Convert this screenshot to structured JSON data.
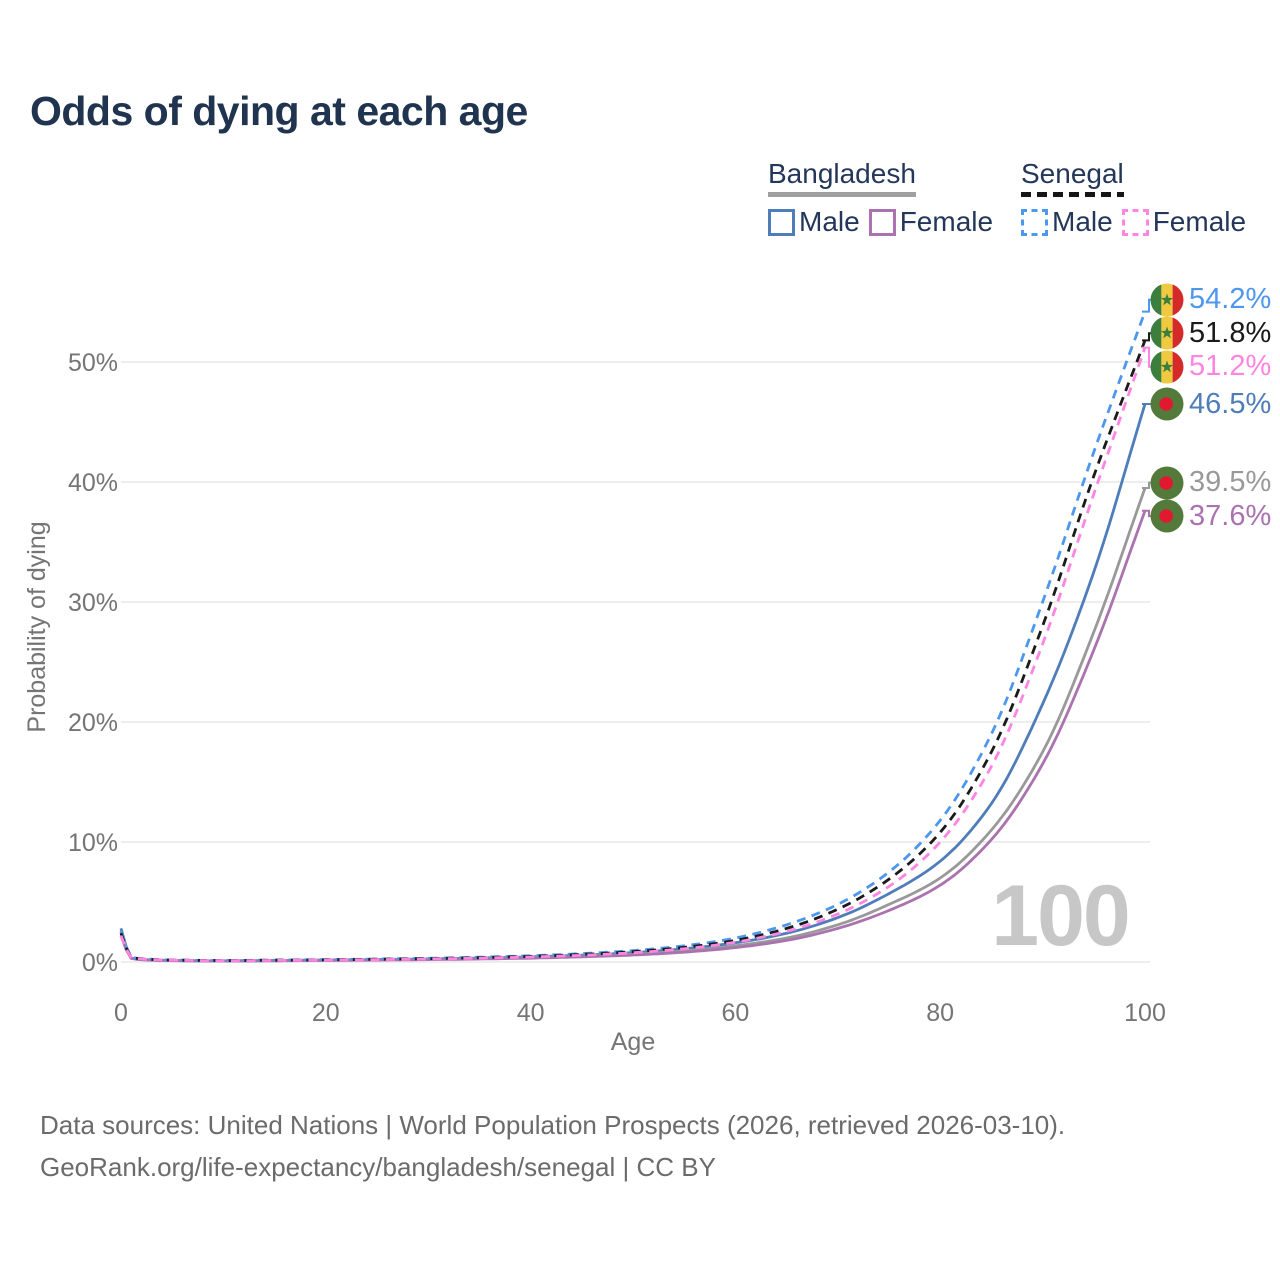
{
  "page": {
    "title": "Odds of dying at each age",
    "watermark": "100",
    "footer_line1": "Data sources: United Nations | World Population Prospects (2026, retrieved 2026-03-10).",
    "footer_line2": "GeoRank.org/life-expectancy/bangladesh/senegal | CC BY"
  },
  "legend": {
    "groups": [
      {
        "name": "Bangladesh",
        "line_style": "solid",
        "underline_color": "#a0a0a0",
        "items": [
          {
            "label": "Male",
            "series": "bangladesh-male"
          },
          {
            "label": "Female",
            "series": "bangladesh-female"
          }
        ]
      },
      {
        "name": "Senegal",
        "line_style": "dashed",
        "underline_color": "#161616",
        "items": [
          {
            "label": "Male",
            "series": "senegal-male"
          },
          {
            "label": "Female",
            "series": "senegal-female"
          }
        ]
      }
    ]
  },
  "flags": {
    "senegal": {
      "green": "#3c7e3e",
      "yellow": "#efc93f",
      "red": "#d42a2a",
      "star": "#3c7e3e"
    },
    "bangladesh": {
      "green": "#537a3a",
      "red": "#e01931"
    }
  },
  "chart_data": {
    "type": "line",
    "title": "Odds of dying at each age",
    "xlabel": "Age",
    "ylabel": "Probability of dying",
    "xlim": [
      0,
      100
    ],
    "ylim_pct": [
      0,
      56
    ],
    "xticks": [
      0,
      20,
      40,
      60,
      80,
      100
    ],
    "yticks": [
      "0%",
      "10%",
      "20%",
      "30%",
      "40%",
      "50%"
    ],
    "ytick_values": [
      0,
      10,
      20,
      30,
      40,
      50
    ],
    "grid": true,
    "legend_position": "top-right",
    "ages": [
      0,
      1,
      2,
      5,
      10,
      15,
      20,
      25,
      30,
      35,
      40,
      45,
      50,
      55,
      60,
      65,
      70,
      75,
      80,
      85,
      90,
      95,
      100
    ],
    "series": [
      {
        "id": "bangladesh-male",
        "name": "Bangladesh Male",
        "country": "Bangladesh",
        "sex": "male",
        "color": "#4e7db9",
        "dash": "solid",
        "flag": "bangladesh",
        "end_label": "46.5%",
        "end_value_pct": 46.5,
        "values_pct": [
          2.8,
          0.35,
          0.22,
          0.13,
          0.1,
          0.13,
          0.17,
          0.21,
          0.26,
          0.33,
          0.43,
          0.57,
          0.78,
          1.1,
          1.6,
          2.4,
          3.7,
          5.7,
          8.4,
          13.2,
          21.5,
          32.5,
          46.5
        ]
      },
      {
        "id": "bangladesh-total",
        "name": "Bangladesh",
        "country": "Bangladesh",
        "sex": "both",
        "color": "#999999",
        "dash": "solid",
        "flag": "bangladesh",
        "end_label": "39.5%",
        "end_value_pct": 39.5,
        "values_pct": [
          2.5,
          0.32,
          0.2,
          0.12,
          0.09,
          0.11,
          0.14,
          0.18,
          0.22,
          0.28,
          0.36,
          0.48,
          0.65,
          0.92,
          1.35,
          2.0,
          3.1,
          4.8,
          7.0,
          11.0,
          17.5,
          27.5,
          39.5
        ]
      },
      {
        "id": "bangladesh-female",
        "name": "Bangladesh Female",
        "country": "Bangladesh",
        "sex": "female",
        "color": "#ab72b0",
        "dash": "solid",
        "flag": "bangladesh",
        "end_label": "37.6%",
        "end_value_pct": 37.6,
        "values_pct": [
          2.2,
          0.3,
          0.19,
          0.11,
          0.08,
          0.1,
          0.13,
          0.16,
          0.2,
          0.25,
          0.32,
          0.43,
          0.58,
          0.82,
          1.2,
          1.8,
          2.8,
          4.3,
          6.4,
          10.2,
          16.5,
          26.0,
          37.6
        ]
      },
      {
        "id": "senegal-male",
        "name": "Senegal Male",
        "country": "Senegal",
        "sex": "male",
        "color": "#4d97ee",
        "dash": "dashed",
        "flag": "senegal",
        "end_label": "54.2%",
        "end_value_pct": 54.2,
        "values_pct": [
          2.6,
          0.42,
          0.28,
          0.17,
          0.13,
          0.16,
          0.2,
          0.25,
          0.31,
          0.4,
          0.52,
          0.7,
          0.95,
          1.35,
          2.0,
          3.1,
          4.8,
          7.5,
          11.8,
          19.0,
          30.0,
          42.5,
          54.2
        ]
      },
      {
        "id": "senegal-total",
        "name": "Senegal",
        "country": "Senegal",
        "sex": "both",
        "color": "#1a1a1a",
        "dash": "dashed",
        "flag": "senegal",
        "end_label": "51.8%",
        "end_value_pct": 51.8,
        "values_pct": [
          2.4,
          0.4,
          0.26,
          0.16,
          0.12,
          0.15,
          0.18,
          0.23,
          0.28,
          0.36,
          0.47,
          0.63,
          0.86,
          1.22,
          1.8,
          2.8,
          4.4,
          6.9,
          10.8,
          17.5,
          28.0,
          40.5,
          51.8
        ]
      },
      {
        "id": "senegal-female",
        "name": "Senegal Female",
        "country": "Senegal",
        "sex": "female",
        "color": "#ff85e2",
        "dash": "dashed",
        "flag": "senegal",
        "end_label": "51.2%",
        "end_value_pct": 51.2,
        "values_pct": [
          2.2,
          0.38,
          0.25,
          0.15,
          0.11,
          0.13,
          0.16,
          0.2,
          0.25,
          0.32,
          0.42,
          0.56,
          0.77,
          1.1,
          1.65,
          2.55,
          4.0,
          6.3,
          10.0,
          16.3,
          26.5,
          39.0,
          51.2
        ]
      }
    ]
  }
}
